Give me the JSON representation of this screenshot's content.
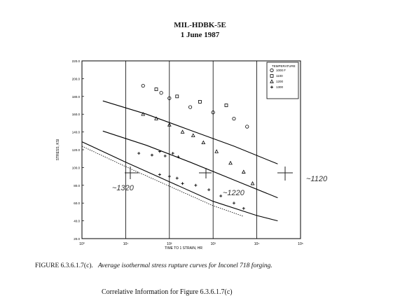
{
  "header": {
    "line1": "MIL-HDBK-5E",
    "line2": "1 June 1987"
  },
  "caption": {
    "label": "FIGURE 6.3.6.1.7(c).",
    "text": "Average isothermal stress rupture curves for Inconel 718 forging."
  },
  "correlative": "Correlative Information for Figure 6.3.6.1.7(c)",
  "handwriting": [
    "~1320",
    "~1220",
    "~1120"
  ],
  "chart_data": {
    "type": "scatter",
    "xlabel": "TIME TO 1 STRAIN, HR",
    "ylabel": "STRESS, KSI",
    "x_scale": "log",
    "xlim": [
      1,
      100000
    ],
    "ylim": [
      20,
      220
    ],
    "x_tick_labels": [
      "10⁰",
      "10¹",
      "10²",
      "10³",
      "10⁴",
      "10⁵"
    ],
    "y_tick_labels": [
      "20.0",
      "40.0",
      "60.0",
      "80.0",
      "100.0",
      "120.0",
      "140.0",
      "160.0",
      "180.0",
      "200.0",
      "220.0"
    ],
    "grid": true,
    "legend_position": "top-right",
    "legend_title": "TEMPERATURE",
    "series": [
      {
        "name": "1000 F",
        "marker": "circle",
        "points": [
          [
            25,
            192
          ],
          [
            65,
            184
          ],
          [
            100,
            178
          ],
          [
            300,
            168
          ],
          [
            1000,
            162
          ],
          [
            3000,
            155
          ],
          [
            6000,
            146
          ]
        ]
      },
      {
        "name": "1100",
        "marker": "square",
        "points": [
          [
            50,
            188
          ],
          [
            150,
            180
          ],
          [
            500,
            174
          ],
          [
            2000,
            170
          ]
        ]
      },
      {
        "name": "1200",
        "marker": "triangle",
        "points": [
          [
            25,
            160
          ],
          [
            50,
            155
          ],
          [
            100,
            148
          ],
          [
            200,
            140
          ],
          [
            350,
            136
          ],
          [
            600,
            128
          ],
          [
            1200,
            118
          ],
          [
            2500,
            105
          ],
          [
            5000,
            95
          ],
          [
            8000,
            82
          ]
        ]
      },
      {
        "name": "1300",
        "marker": "plus",
        "points": [
          [
            20,
            116
          ],
          [
            40,
            114
          ],
          [
            60,
            118
          ],
          [
            80,
            113
          ],
          [
            120,
            116
          ],
          [
            160,
            112
          ],
          [
            60,
            92
          ],
          [
            100,
            90
          ],
          [
            150,
            88
          ],
          [
            200,
            82
          ],
          [
            400,
            80
          ],
          [
            800,
            75
          ],
          [
            1500,
            68
          ],
          [
            3000,
            60
          ],
          [
            5000,
            54
          ]
        ]
      }
    ],
    "curves": [
      {
        "style": "solid",
        "points": [
          [
            3,
            175
          ],
          [
            30,
            160
          ],
          [
            300,
            142
          ],
          [
            3000,
            124
          ],
          [
            30000,
            104
          ]
        ]
      },
      {
        "style": "solid",
        "points": [
          [
            3,
            141
          ],
          [
            30,
            125
          ],
          [
            300,
            106
          ],
          [
            3000,
            86
          ],
          [
            30000,
            66
          ]
        ]
      },
      {
        "style": "solid",
        "points": [
          [
            1,
            129
          ],
          [
            10,
            106
          ],
          [
            100,
            84
          ],
          [
            1000,
            62
          ],
          [
            10000,
            46
          ],
          [
            30000,
            40
          ]
        ]
      },
      {
        "style": "dotted",
        "points": [
          [
            1,
            124
          ],
          [
            10,
            101
          ],
          [
            100,
            79
          ],
          [
            1000,
            57
          ],
          [
            5000,
            45
          ]
        ]
      }
    ]
  }
}
